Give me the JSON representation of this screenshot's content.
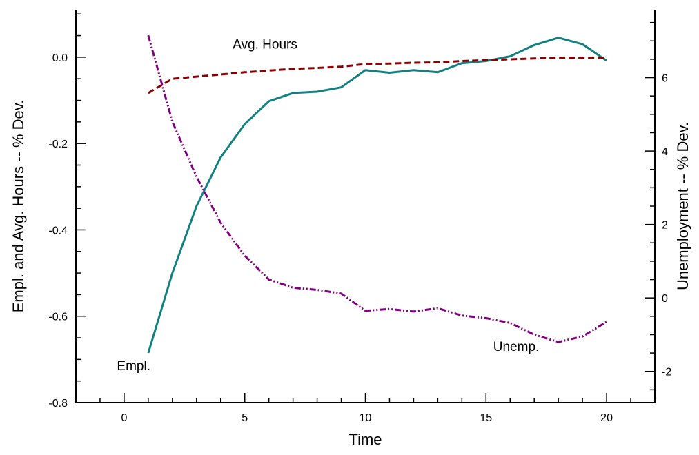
{
  "chart_data": {
    "type": "line",
    "xlabel": "Time",
    "ylabel_left": "Empl. and Avg. Hours -- % Dev.",
    "ylabel_right": "Unemployment -- % Dev.",
    "xlim": [
      -2,
      22
    ],
    "ylim_left": [
      -0.8,
      0.11
    ],
    "ylim_right": [
      -2.85,
      7.85
    ],
    "x_ticks": [
      0,
      5,
      10,
      15,
      20
    ],
    "y_ticks_left": [
      0.0,
      -0.2,
      -0.4,
      -0.6,
      -0.8
    ],
    "y_ticks_left_labels": [
      "0.0",
      "-0.2",
      "-0.4",
      "-0.6",
      "-0.8"
    ],
    "y_ticks_right": [
      6,
      4,
      2,
      0,
      -2
    ],
    "y_ticks_right_labels": [
      "6",
      "4",
      "2",
      "0",
      "-2"
    ],
    "grid": false,
    "x": [
      1,
      2,
      3,
      4,
      5,
      6,
      7,
      8,
      9,
      10,
      11,
      12,
      13,
      14,
      15,
      16,
      17,
      18,
      19,
      20
    ],
    "series": [
      {
        "name": "Empl.",
        "axis": "left",
        "color": "#128080",
        "dash": "solid",
        "values": [
          -0.685,
          -0.5,
          -0.345,
          -0.232,
          -0.155,
          -0.102,
          -0.083,
          -0.08,
          -0.07,
          -0.03,
          -0.036,
          -0.03,
          -0.035,
          -0.014,
          -0.009,
          0.002,
          0.028,
          0.045,
          0.03,
          -0.008
        ]
      },
      {
        "name": "Avg. Hours",
        "axis": "left",
        "color": "#8b0000",
        "dash": "dashed",
        "values": [
          -0.083,
          -0.05,
          -0.045,
          -0.04,
          -0.035,
          -0.031,
          -0.027,
          -0.025,
          -0.022,
          -0.016,
          -0.015,
          -0.013,
          -0.012,
          -0.009,
          -0.007,
          -0.005,
          -0.003,
          -0.001,
          -0.001,
          -0.001
        ]
      },
      {
        "name": "Unemp.",
        "axis": "right",
        "color": "#800080",
        "dash": "dashdotdot",
        "values": [
          7.15,
          4.8,
          3.3,
          2.05,
          1.15,
          0.5,
          0.28,
          0.22,
          0.12,
          -0.35,
          -0.3,
          -0.37,
          -0.28,
          -0.48,
          -0.55,
          -0.68,
          -1.0,
          -1.2,
          -1.05,
          -0.65
        ]
      }
    ],
    "annotations": [
      {
        "text": "Avg. Hours",
        "x": 4.5,
        "y": 0.02,
        "axis": "left"
      },
      {
        "text": "Empl.",
        "x": -0.3,
        "y": -0.725,
        "axis": "left"
      },
      {
        "text": "Unemp.",
        "x": 15.3,
        "y": -0.68,
        "axis": "left"
      }
    ]
  }
}
